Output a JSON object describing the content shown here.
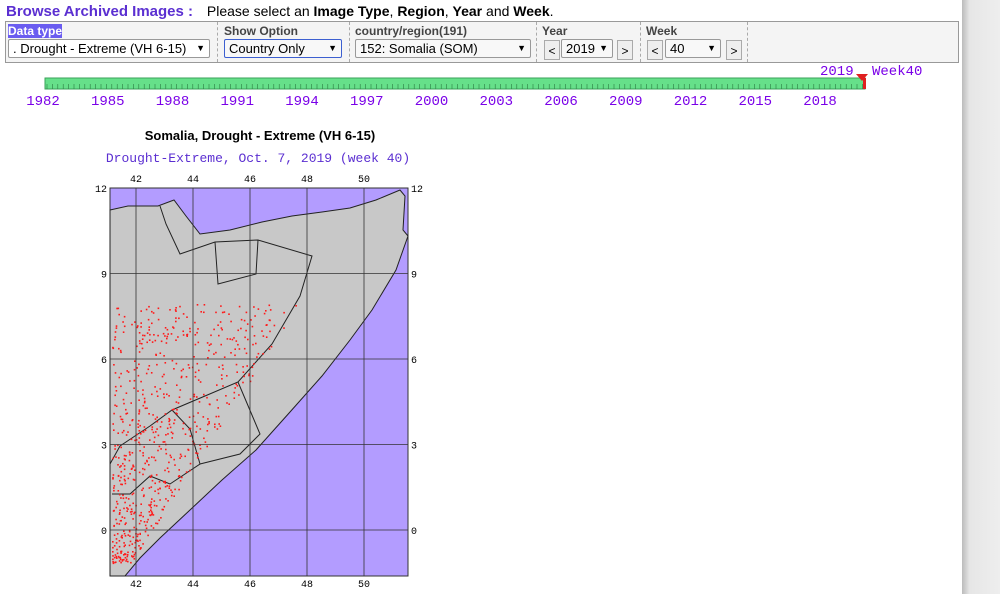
{
  "header": {
    "title": "Browse Archived Images :",
    "instruction": [
      "Please select an",
      "Image Type",
      ",",
      "Region",
      ",",
      "Year",
      "and",
      "Week",
      "."
    ]
  },
  "controls": {
    "data_type": {
      "label": "Data type",
      "value": ". Drought - Extreme (VH 6-15)"
    },
    "show_option": {
      "label": "Show Option",
      "value": "Country Only"
    },
    "region": {
      "label": "country/region(191)",
      "value": "152: Somalia (SOM)"
    },
    "year": {
      "label": "Year",
      "prev": "<",
      "value": "2019",
      "next": ">"
    },
    "week": {
      "label": "Week",
      "prev": "<",
      "value": "40",
      "next": ">"
    }
  },
  "timeline": {
    "years": [
      "1982",
      "1985",
      "1988",
      "1991",
      "1994",
      "1997",
      "2000",
      "2003",
      "2006",
      "2009",
      "2012",
      "2015",
      "2018"
    ],
    "current_year": "2019",
    "current_week": "Week40"
  },
  "map": {
    "title": "Somalia, Drought - Extreme (VH 6-15)",
    "subtitle": "Drought-Extreme, Oct. 7, 2019 (week 40)",
    "lon_labels": [
      "42",
      "44",
      "46",
      "48",
      "50"
    ],
    "lat_labels": [
      "12",
      "9",
      "6",
      "3",
      "0"
    ]
  }
}
